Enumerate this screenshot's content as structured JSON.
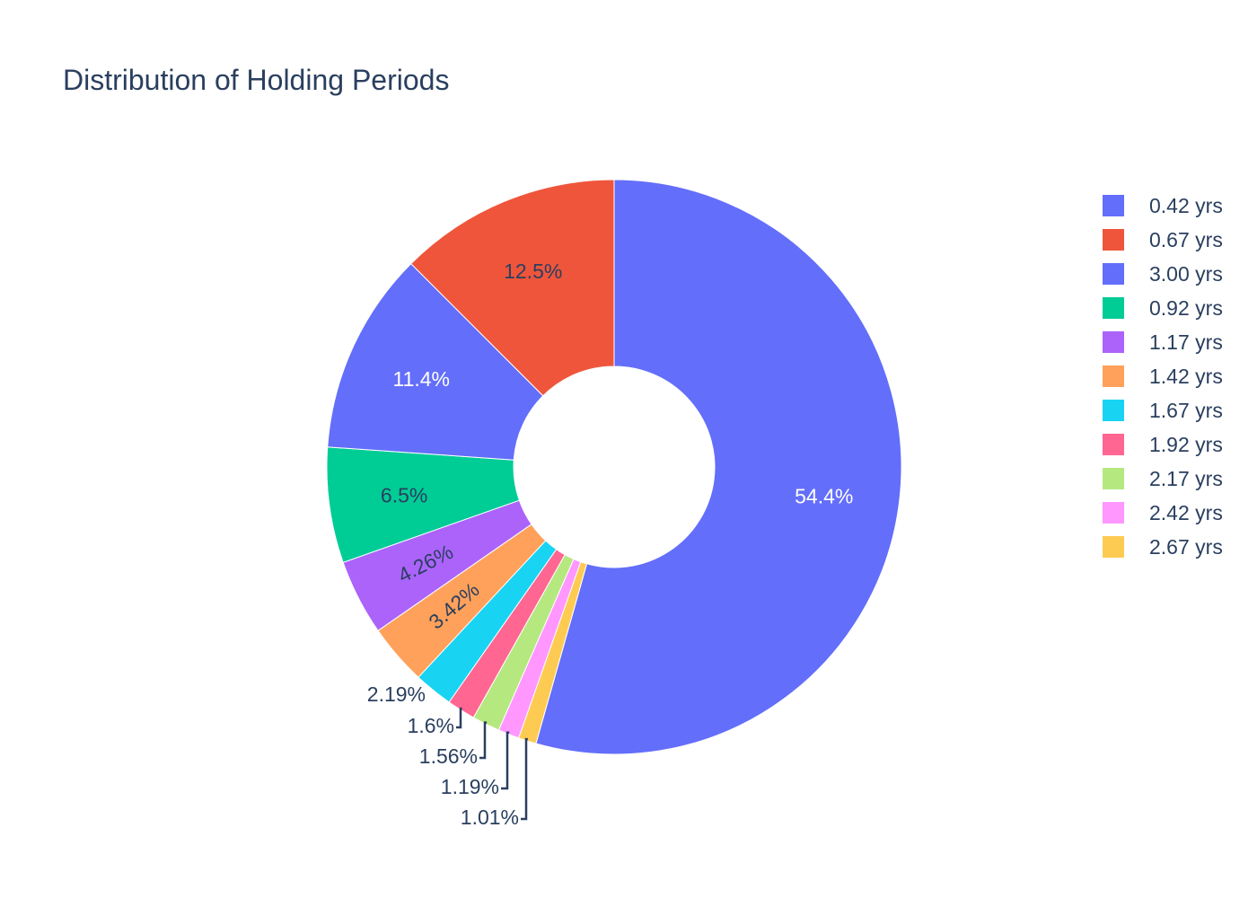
{
  "chart_data": {
    "type": "pie",
    "hole": true,
    "title": "Distribution of Holding Periods",
    "legend_position": "right",
    "slices": [
      {
        "label": "3.00 yrs",
        "value": 54.4,
        "text": "54.4%",
        "color": "#636efa",
        "text_color": "#ffffff",
        "placement": "inside"
      },
      {
        "label": "2.67 yrs",
        "value": 1.01,
        "text": "1.01%",
        "color": "#fecb52",
        "text_color": "#2a3f5f",
        "placement": "outside"
      },
      {
        "label": "2.42 yrs",
        "value": 1.19,
        "text": "1.19%",
        "color": "#ff97ff",
        "text_color": "#2a3f5f",
        "placement": "outside"
      },
      {
        "label": "2.17 yrs",
        "value": 1.56,
        "text": "1.56%",
        "color": "#b6e880",
        "text_color": "#2a3f5f",
        "placement": "outside"
      },
      {
        "label": "1.92 yrs",
        "value": 1.6,
        "text": "1.6%",
        "color": "#ff6692",
        "text_color": "#2a3f5f",
        "placement": "outside"
      },
      {
        "label": "1.67 yrs",
        "value": 2.19,
        "text": "2.19%",
        "color": "#19d3f3",
        "text_color": "#2a3f5f",
        "placement": "outside"
      },
      {
        "label": "1.42 yrs",
        "value": 3.42,
        "text": "3.42%",
        "color": "#ffa15a",
        "text_color": "#2a3f5f",
        "placement": "inside"
      },
      {
        "label": "1.17 yrs",
        "value": 4.26,
        "text": "4.26%",
        "color": "#ab63fa",
        "text_color": "#2a3f5f",
        "placement": "inside"
      },
      {
        "label": "0.92 yrs",
        "value": 6.5,
        "text": "6.5%",
        "color": "#00cc96",
        "text_color": "#2a3f5f",
        "placement": "inside"
      },
      {
        "label": "0.42 yrs",
        "value": 11.4,
        "text": "11.4%",
        "color": "#636efa",
        "text_color": "#ffffff",
        "placement": "inside"
      },
      {
        "label": "0.67 yrs",
        "value": 12.5,
        "text": "12.5%",
        "color": "#ef553b",
        "text_color": "#2a3f5f",
        "placement": "inside"
      }
    ],
    "legend": [
      {
        "label": "0.42 yrs",
        "color": "#636efa"
      },
      {
        "label": "0.67 yrs",
        "color": "#ef553b"
      },
      {
        "label": "3.00 yrs",
        "color": "#636efa"
      },
      {
        "label": "0.92 yrs",
        "color": "#00cc96"
      },
      {
        "label": "1.17 yrs",
        "color": "#ab63fa"
      },
      {
        "label": "1.42 yrs",
        "color": "#ffa15a"
      },
      {
        "label": "1.67 yrs",
        "color": "#19d3f3"
      },
      {
        "label": "1.92 yrs",
        "color": "#ff6692"
      },
      {
        "label": "2.17 yrs",
        "color": "#b6e880"
      },
      {
        "label": "2.42 yrs",
        "color": "#ff97ff"
      },
      {
        "label": "2.67 yrs",
        "color": "#fecb52"
      }
    ]
  }
}
